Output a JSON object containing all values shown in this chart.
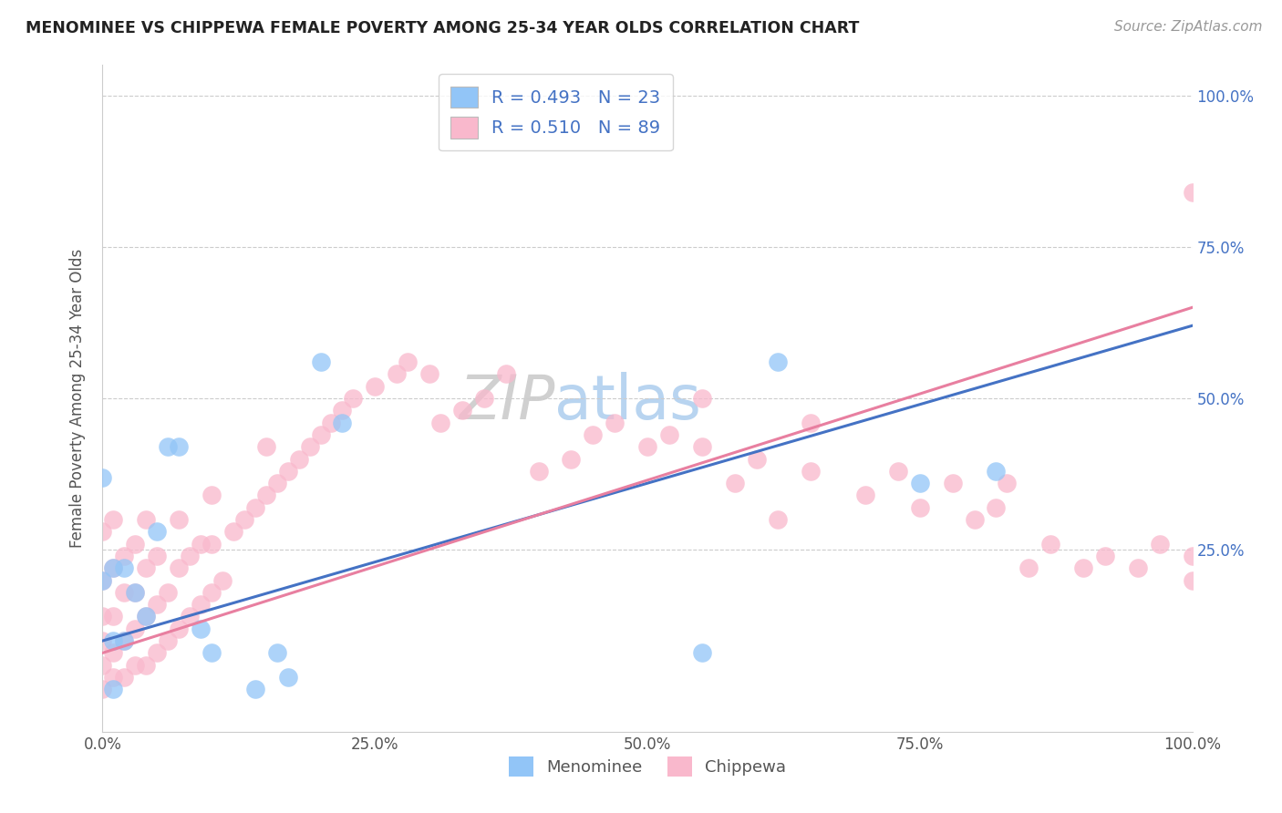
{
  "title": "MENOMINEE VS CHIPPEWA FEMALE POVERTY AMONG 25-34 YEAR OLDS CORRELATION CHART",
  "source": "Source: ZipAtlas.com",
  "ylabel": "Female Poverty Among 25-34 Year Olds",
  "xlim": [
    0.0,
    1.0
  ],
  "ylim": [
    -0.05,
    1.05
  ],
  "xtick_labels": [
    "0.0%",
    "25.0%",
    "50.0%",
    "75.0%",
    "100.0%"
  ],
  "xtick_vals": [
    0.0,
    0.25,
    0.5,
    0.75,
    1.0
  ],
  "right_ytick_labels": [
    "25.0%",
    "50.0%",
    "75.0%",
    "100.0%"
  ],
  "right_ytick_vals": [
    0.25,
    0.5,
    0.75,
    1.0
  ],
  "menominee_color": "#92c5f7",
  "chippewa_color": "#f9b8cc",
  "menominee_line_color": "#4472c4",
  "chippewa_line_color": "#e87fa0",
  "R_menominee": 0.493,
  "N_menominee": 23,
  "R_chippewa": 0.51,
  "N_chippewa": 89,
  "legend_text_color": "#4472c4",
  "title_color": "#222222",
  "grid_color": "#cccccc",
  "background_color": "#ffffff",
  "menominee_x": [
    0.0,
    0.0,
    0.01,
    0.01,
    0.01,
    0.02,
    0.02,
    0.03,
    0.04,
    0.05,
    0.06,
    0.07,
    0.09,
    0.1,
    0.14,
    0.16,
    0.17,
    0.2,
    0.22,
    0.55,
    0.62,
    0.75,
    0.82
  ],
  "menominee_y": [
    0.2,
    0.37,
    0.02,
    0.1,
    0.22,
    0.1,
    0.22,
    0.18,
    0.14,
    0.28,
    0.42,
    0.42,
    0.12,
    0.08,
    0.02,
    0.08,
    0.04,
    0.56,
    0.46,
    0.08,
    0.56,
    0.36,
    0.38
  ],
  "chippewa_x": [
    0.0,
    0.0,
    0.0,
    0.0,
    0.0,
    0.0,
    0.01,
    0.01,
    0.01,
    0.01,
    0.01,
    0.02,
    0.02,
    0.02,
    0.02,
    0.03,
    0.03,
    0.03,
    0.03,
    0.04,
    0.04,
    0.04,
    0.04,
    0.05,
    0.05,
    0.05,
    0.06,
    0.06,
    0.07,
    0.07,
    0.07,
    0.08,
    0.08,
    0.09,
    0.09,
    0.1,
    0.1,
    0.1,
    0.11,
    0.12,
    0.13,
    0.14,
    0.15,
    0.15,
    0.16,
    0.17,
    0.18,
    0.19,
    0.2,
    0.21,
    0.22,
    0.23,
    0.25,
    0.27,
    0.28,
    0.3,
    0.31,
    0.33,
    0.35,
    0.37,
    0.4,
    0.43,
    0.45,
    0.47,
    0.5,
    0.52,
    0.55,
    0.55,
    0.58,
    0.6,
    0.62,
    0.65,
    0.65,
    0.7,
    0.73,
    0.75,
    0.78,
    0.8,
    0.82,
    0.83,
    0.85,
    0.87,
    0.9,
    0.92,
    0.95,
    0.97,
    1.0,
    1.0,
    1.0
  ],
  "chippewa_y": [
    0.02,
    0.06,
    0.1,
    0.14,
    0.2,
    0.28,
    0.04,
    0.08,
    0.14,
    0.22,
    0.3,
    0.04,
    0.1,
    0.18,
    0.24,
    0.06,
    0.12,
    0.18,
    0.26,
    0.06,
    0.14,
    0.22,
    0.3,
    0.08,
    0.16,
    0.24,
    0.1,
    0.18,
    0.12,
    0.22,
    0.3,
    0.14,
    0.24,
    0.16,
    0.26,
    0.18,
    0.26,
    0.34,
    0.2,
    0.28,
    0.3,
    0.32,
    0.34,
    0.42,
    0.36,
    0.38,
    0.4,
    0.42,
    0.44,
    0.46,
    0.48,
    0.5,
    0.52,
    0.54,
    0.56,
    0.54,
    0.46,
    0.48,
    0.5,
    0.54,
    0.38,
    0.4,
    0.44,
    0.46,
    0.42,
    0.44,
    0.42,
    0.5,
    0.36,
    0.4,
    0.3,
    0.38,
    0.46,
    0.34,
    0.38,
    0.32,
    0.36,
    0.3,
    0.32,
    0.36,
    0.22,
    0.26,
    0.22,
    0.24,
    0.22,
    0.26,
    0.2,
    0.24,
    0.84
  ]
}
